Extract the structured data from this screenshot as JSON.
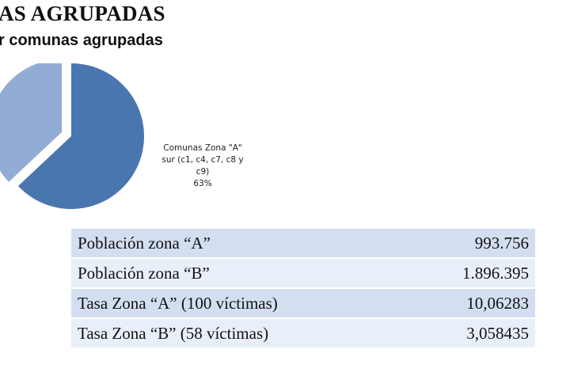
{
  "header": {
    "title": "AS AGRUPADAS",
    "subtitle": "r comunas agrupadas"
  },
  "colors": {
    "slice_a": "#4a76b0",
    "slice_b": "#93acd5",
    "row_dark": "#d3dff0",
    "row_light": "#e9eff8"
  },
  "chart_data": {
    "type": "pie",
    "title": "",
    "slices": [
      {
        "label_lines": [
          "Comunas Zona \"A\"",
          "sur (c1, c4, c7, c8 y",
          "c9)",
          "63%"
        ],
        "value": 63,
        "color": "#4a76b0"
      },
      {
        "label_lines": [],
        "value": 37,
        "color": "#93acd5"
      }
    ]
  },
  "table": {
    "rows": [
      {
        "label": "Población zona “A”",
        "value": "993.756"
      },
      {
        "label": "Población zona “B”",
        "value": "1.896.395"
      },
      {
        "label": "Tasa Zona “A” (100 víctimas)",
        "value": "10,06283"
      },
      {
        "label": "Tasa Zona “B” (58 víctimas)",
        "value": "3,058435"
      }
    ]
  }
}
